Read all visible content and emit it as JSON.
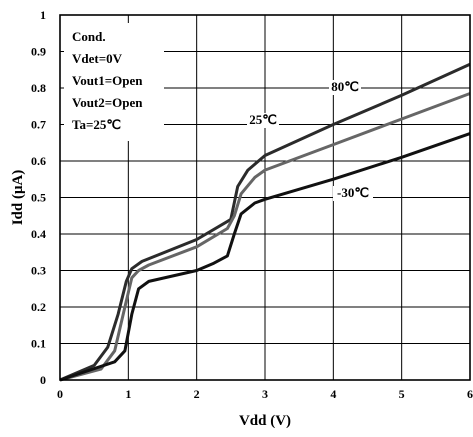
{
  "chart_data": {
    "type": "line",
    "xlabel": "Vdd (V)",
    "ylabel": "Idd (μA)",
    "xlim": [
      0,
      6
    ],
    "ylim": [
      0,
      1
    ],
    "x_ticks": [
      "0",
      "1",
      "2",
      "3",
      "4",
      "5",
      "6"
    ],
    "y_ticks": [
      "0",
      "0.1",
      "0.2",
      "0.3",
      "0.4",
      "0.5",
      "0.6",
      "0.7",
      "0.8",
      "0.9",
      "1"
    ],
    "grid": true,
    "conditions": [
      "Cond.",
      "Vdet=0V",
      "Vout1=Open",
      "Vout2=Open",
      "Ta=25℃"
    ],
    "series": [
      {
        "name": "80℃",
        "color": "#2b2b2b",
        "points": [
          [
            0,
            0
          ],
          [
            0.5,
            0.04
          ],
          [
            0.7,
            0.09
          ],
          [
            0.85,
            0.18
          ],
          [
            0.97,
            0.27
          ],
          [
            1.05,
            0.305
          ],
          [
            1.2,
            0.325
          ],
          [
            2.0,
            0.385
          ],
          [
            2.5,
            0.44
          ],
          [
            2.6,
            0.53
          ],
          [
            2.75,
            0.575
          ],
          [
            3.0,
            0.615
          ],
          [
            4.0,
            0.7
          ],
          [
            5.0,
            0.78
          ],
          [
            6.0,
            0.865
          ]
        ]
      },
      {
        "name": "25℃",
        "color": "#666666",
        "points": [
          [
            0,
            0
          ],
          [
            0.6,
            0.03
          ],
          [
            0.8,
            0.08
          ],
          [
            0.95,
            0.2
          ],
          [
            1.05,
            0.28
          ],
          [
            1.15,
            0.3
          ],
          [
            1.3,
            0.315
          ],
          [
            2.0,
            0.365
          ],
          [
            2.45,
            0.415
          ],
          [
            2.55,
            0.45
          ],
          [
            2.65,
            0.51
          ],
          [
            2.85,
            0.555
          ],
          [
            3.0,
            0.575
          ],
          [
            4.0,
            0.645
          ],
          [
            5.0,
            0.715
          ],
          [
            6.0,
            0.785
          ]
        ]
      },
      {
        "name": "-30℃",
        "color": "#111111",
        "points": [
          [
            0,
            0
          ],
          [
            0.8,
            0.05
          ],
          [
            0.95,
            0.08
          ],
          [
            1.05,
            0.18
          ],
          [
            1.15,
            0.25
          ],
          [
            1.3,
            0.27
          ],
          [
            2.0,
            0.3
          ],
          [
            2.25,
            0.32
          ],
          [
            2.45,
            0.34
          ],
          [
            2.55,
            0.4
          ],
          [
            2.65,
            0.455
          ],
          [
            2.85,
            0.485
          ],
          [
            3.0,
            0.495
          ],
          [
            4.0,
            0.55
          ],
          [
            5.0,
            0.61
          ],
          [
            6.0,
            0.675
          ]
        ]
      }
    ],
    "curve_labels": [
      {
        "text": "80℃",
        "series": 0
      },
      {
        "text": "25℃",
        "series": 1
      },
      {
        "text": "-30℃",
        "series": 2
      }
    ]
  }
}
